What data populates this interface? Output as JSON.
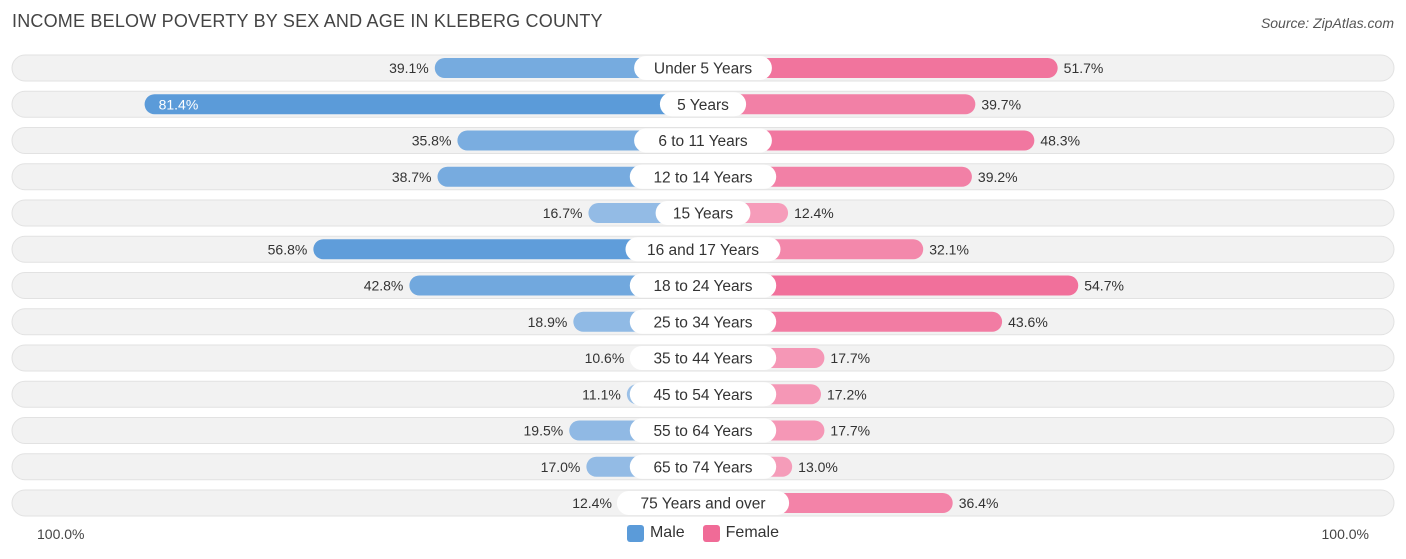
{
  "header": {
    "title": "INCOME BELOW POVERTY BY SEX AND AGE IN KLEBERG COUNTY",
    "source": "Source: ZipAtlas.com"
  },
  "colors": {
    "male_strong": "#5b9bd9",
    "male_light": "#a9c8ea",
    "female_strong": "#f06b97",
    "female_light": "#f7a9c3"
  },
  "axis": {
    "left_label": "100.0%",
    "right_label": "100.0%"
  },
  "legend": {
    "male": "Male",
    "female": "Female"
  },
  "chart_data": {
    "type": "bar",
    "orientation": "horizontal-diverging",
    "title": "INCOME BELOW POVERTY BY SEX AND AGE IN KLEBERG COUNTY",
    "categories": [
      "Under 5 Years",
      "5 Years",
      "6 to 11 Years",
      "12 to 14 Years",
      "15 Years",
      "16 and 17 Years",
      "18 to 24 Years",
      "25 to 34 Years",
      "35 to 44 Years",
      "45 to 54 Years",
      "55 to 64 Years",
      "65 to 74 Years",
      "75 Years and over"
    ],
    "series": [
      {
        "name": "Male",
        "values": [
          39.1,
          81.4,
          35.8,
          38.7,
          16.7,
          56.8,
          42.8,
          18.9,
          10.6,
          11.1,
          19.5,
          17.0,
          12.4
        ],
        "labels": [
          "39.1%",
          "81.4%",
          "35.8%",
          "38.7%",
          "16.7%",
          "56.8%",
          "42.8%",
          "18.9%",
          "10.6%",
          "11.1%",
          "19.5%",
          "17.0%",
          "12.4%"
        ]
      },
      {
        "name": "Female",
        "values": [
          51.7,
          39.7,
          48.3,
          39.2,
          12.4,
          32.1,
          54.7,
          43.6,
          17.7,
          17.2,
          17.7,
          13.0,
          36.4
        ],
        "labels": [
          "51.7%",
          "39.7%",
          "48.3%",
          "39.2%",
          "12.4%",
          "32.1%",
          "54.7%",
          "43.6%",
          "17.7%",
          "17.2%",
          "17.7%",
          "13.0%",
          "36.4%"
        ]
      }
    ],
    "xlim": [
      -100,
      100
    ],
    "legend_position": "bottom-center"
  }
}
